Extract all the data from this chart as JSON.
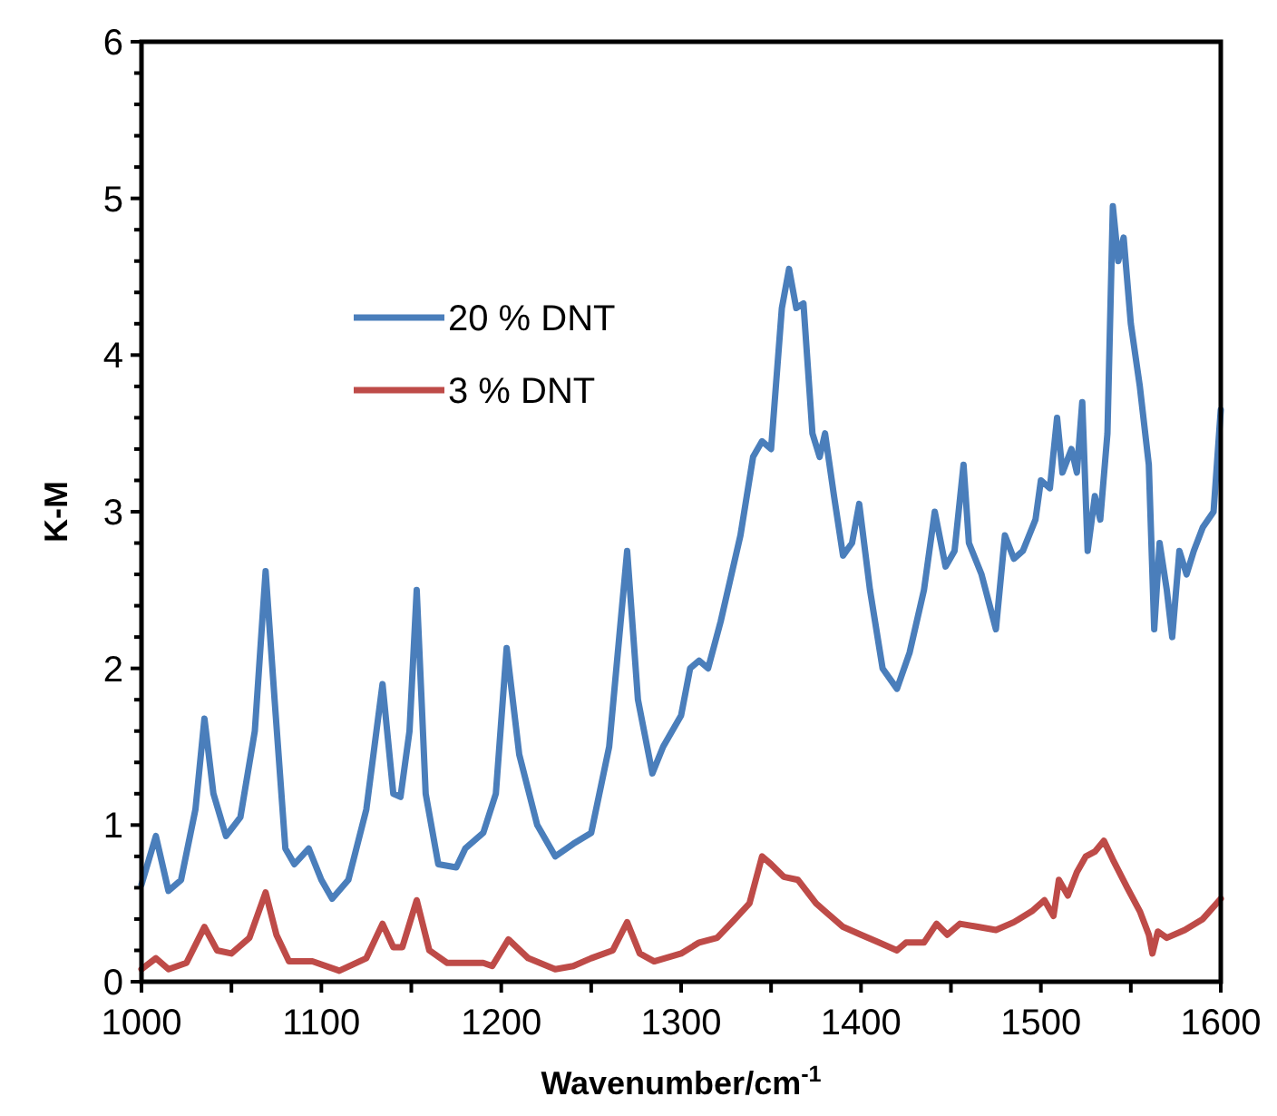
{
  "chart_data": {
    "type": "line",
    "xlabel": "Wavenumber/cm$^{-1}$",
    "ylabel": "K-M",
    "xlim": [
      1000,
      1600
    ],
    "ylim": [
      0,
      6
    ],
    "xticks": [
      1000,
      {
        "value": 1050,
        "label": null
      },
      1100,
      {
        "value": 1150,
        "label": null
      },
      1200,
      {
        "value": 1250,
        "label": null
      },
      1300,
      {
        "value": 1350,
        "label": null
      },
      1400,
      {
        "value": 1450,
        "label": null
      },
      1500,
      {
        "value": 1550,
        "label": null
      },
      1600
    ],
    "yticks": [
      0,
      {
        "value": 0.2,
        "label": null
      },
      {
        "value": 0.4,
        "label": null
      },
      {
        "value": 0.6,
        "label": null
      },
      {
        "value": 0.8,
        "label": null
      },
      1,
      {
        "value": 1.2,
        "label": null
      },
      {
        "value": 1.4,
        "label": null
      },
      {
        "value": 1.6,
        "label": null
      },
      {
        "value": 1.8,
        "label": null
      },
      2,
      {
        "value": 2.2,
        "label": null
      },
      {
        "value": 2.4,
        "label": null
      },
      {
        "value": 2.6,
        "label": null
      },
      {
        "value": 2.8,
        "label": null
      },
      3,
      {
        "value": 3.2,
        "label": null
      },
      {
        "value": 3.4,
        "label": null
      },
      {
        "value": 3.6,
        "label": null
      },
      {
        "value": 3.8,
        "label": null
      },
      4,
      {
        "value": 4.2,
        "label": null
      },
      {
        "value": 4.4,
        "label": null
      },
      {
        "value": 4.6,
        "label": null
      },
      {
        "value": 4.8,
        "label": null
      },
      5,
      {
        "value": 5.2,
        "label": null
      },
      {
        "value": 5.4,
        "label": null
      },
      {
        "value": 5.6,
        "label": null
      },
      {
        "value": 5.8,
        "label": null
      },
      6
    ],
    "grid": false,
    "legend": "top left",
    "marker": "none",
    "line_style": "solid",
    "series": [
      {
        "name": "20 % DNT",
        "color": "#4a7ebb",
        "x": [
          1000,
          1008,
          1015,
          1022,
          1030,
          1035,
          1040,
          1047,
          1055,
          1063,
          1069,
          1074,
          1080,
          1085,
          1093,
          1100,
          1106,
          1115,
          1125,
          1134,
          1140,
          1144,
          1149,
          1153,
          1158,
          1165,
          1175,
          1180,
          1190,
          1197,
          1203,
          1210,
          1220,
          1230,
          1240,
          1250,
          1260,
          1270,
          1276,
          1284,
          1290,
          1300,
          1305,
          1310,
          1315,
          1322,
          1328,
          1333,
          1340,
          1345,
          1350,
          1356,
          1360,
          1364,
          1368,
          1373,
          1377,
          1380,
          1385,
          1390,
          1395,
          1399,
          1405,
          1412,
          1420,
          1427,
          1435,
          1441,
          1447,
          1452,
          1457,
          1460,
          1467,
          1475,
          1480,
          1485,
          1490,
          1497,
          1500,
          1505,
          1509,
          1512,
          1517,
          1520,
          1523,
          1526,
          1530,
          1533,
          1537,
          1540,
          1543,
          1546,
          1550,
          1555,
          1560,
          1563,
          1566,
          1570,
          1573,
          1577,
          1581,
          1585,
          1590,
          1596,
          1600
        ],
        "values": [
          0.62,
          0.93,
          0.58,
          0.65,
          1.1,
          1.68,
          1.2,
          0.93,
          1.05,
          1.6,
          2.62,
          1.8,
          0.85,
          0.75,
          0.85,
          0.65,
          0.53,
          0.65,
          1.1,
          1.9,
          1.2,
          1.18,
          1.6,
          2.5,
          1.2,
          0.75,
          0.73,
          0.85,
          0.95,
          1.2,
          2.13,
          1.45,
          1.0,
          0.8,
          0.88,
          0.95,
          1.5,
          2.75,
          1.8,
          1.33,
          1.5,
          1.7,
          2.0,
          2.05,
          2.0,
          2.3,
          2.6,
          2.85,
          3.35,
          3.45,
          3.4,
          4.3,
          4.55,
          4.3,
          4.33,
          3.5,
          3.35,
          3.5,
          3.1,
          2.72,
          2.8,
          3.05,
          2.5,
          2.0,
          1.87,
          2.1,
          2.5,
          3.0,
          2.65,
          2.75,
          3.3,
          2.8,
          2.6,
          2.25,
          2.85,
          2.7,
          2.75,
          2.95,
          3.2,
          3.15,
          3.6,
          3.25,
          3.4,
          3.25,
          3.7,
          2.75,
          3.1,
          2.95,
          3.5,
          4.95,
          4.6,
          4.75,
          4.2,
          3.8,
          3.3,
          2.25,
          2.8,
          2.5,
          2.2,
          2.75,
          2.6,
          2.75,
          2.9,
          3.0,
          3.65
        ]
      },
      {
        "name": "3 % DNT",
        "color": "#be4b48",
        "x": [
          1000,
          1008,
          1015,
          1025,
          1035,
          1042,
          1050,
          1060,
          1069,
          1075,
          1082,
          1095,
          1110,
          1125,
          1134,
          1140,
          1145,
          1153,
          1160,
          1170,
          1190,
          1195,
          1204,
          1215,
          1230,
          1240,
          1250,
          1262,
          1270,
          1277,
          1285,
          1300,
          1310,
          1320,
          1330,
          1338,
          1345,
          1350,
          1357,
          1365,
          1375,
          1380,
          1390,
          1400,
          1410,
          1420,
          1425,
          1435,
          1442,
          1448,
          1455,
          1465,
          1475,
          1485,
          1495,
          1502,
          1507,
          1510,
          1515,
          1520,
          1525,
          1530,
          1535,
          1540,
          1548,
          1555,
          1560,
          1562,
          1565,
          1570,
          1580,
          1590,
          1600
        ],
        "values": [
          0.08,
          0.15,
          0.08,
          0.12,
          0.35,
          0.2,
          0.18,
          0.28,
          0.57,
          0.3,
          0.13,
          0.13,
          0.07,
          0.15,
          0.37,
          0.22,
          0.22,
          0.52,
          0.2,
          0.12,
          0.12,
          0.1,
          0.27,
          0.15,
          0.08,
          0.1,
          0.15,
          0.2,
          0.38,
          0.18,
          0.13,
          0.18,
          0.25,
          0.28,
          0.4,
          0.5,
          0.8,
          0.75,
          0.67,
          0.65,
          0.5,
          0.45,
          0.35,
          0.3,
          0.25,
          0.2,
          0.25,
          0.25,
          0.37,
          0.3,
          0.37,
          0.35,
          0.33,
          0.38,
          0.45,
          0.52,
          0.42,
          0.65,
          0.55,
          0.7,
          0.8,
          0.83,
          0.9,
          0.78,
          0.6,
          0.45,
          0.3,
          0.18,
          0.32,
          0.28,
          0.33,
          0.4,
          0.53
        ]
      }
    ]
  }
}
